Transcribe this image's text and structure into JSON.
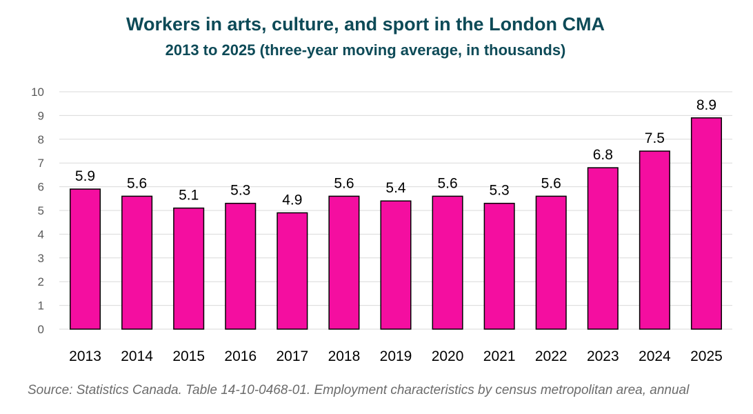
{
  "chart_data": {
    "type": "bar",
    "title": "Workers in arts, culture, and sport in the London CMA",
    "subtitle": "2013 to 2025 (three-year moving average, in thousands)",
    "categories": [
      "2013",
      "2014",
      "2015",
      "2016",
      "2017",
      "2018",
      "2019",
      "2020",
      "2021",
      "2022",
      "2023",
      "2024",
      "2025"
    ],
    "values": [
      5.9,
      5.6,
      5.1,
      5.3,
      4.9,
      5.6,
      5.4,
      5.6,
      5.3,
      5.6,
      6.8,
      7.5,
      8.9
    ],
    "data_labels": [
      "5.9",
      "5.6",
      "5.1",
      "5.3",
      "4.9",
      "5.6",
      "5.4",
      "5.6",
      "5.3",
      "5.6",
      "6.8",
      "7.5",
      "8.9"
    ],
    "ylim": [
      0,
      10
    ],
    "yticks": [
      0,
      1,
      2,
      3,
      4,
      5,
      6,
      7,
      8,
      9,
      10
    ],
    "grid": true,
    "bar_color": "#f40ea0",
    "xlabel": "",
    "ylabel": ""
  },
  "source": "Source: Statistics Canada. Table 14-10-0468-01. Employment characteristics by census metropolitan area, annual"
}
